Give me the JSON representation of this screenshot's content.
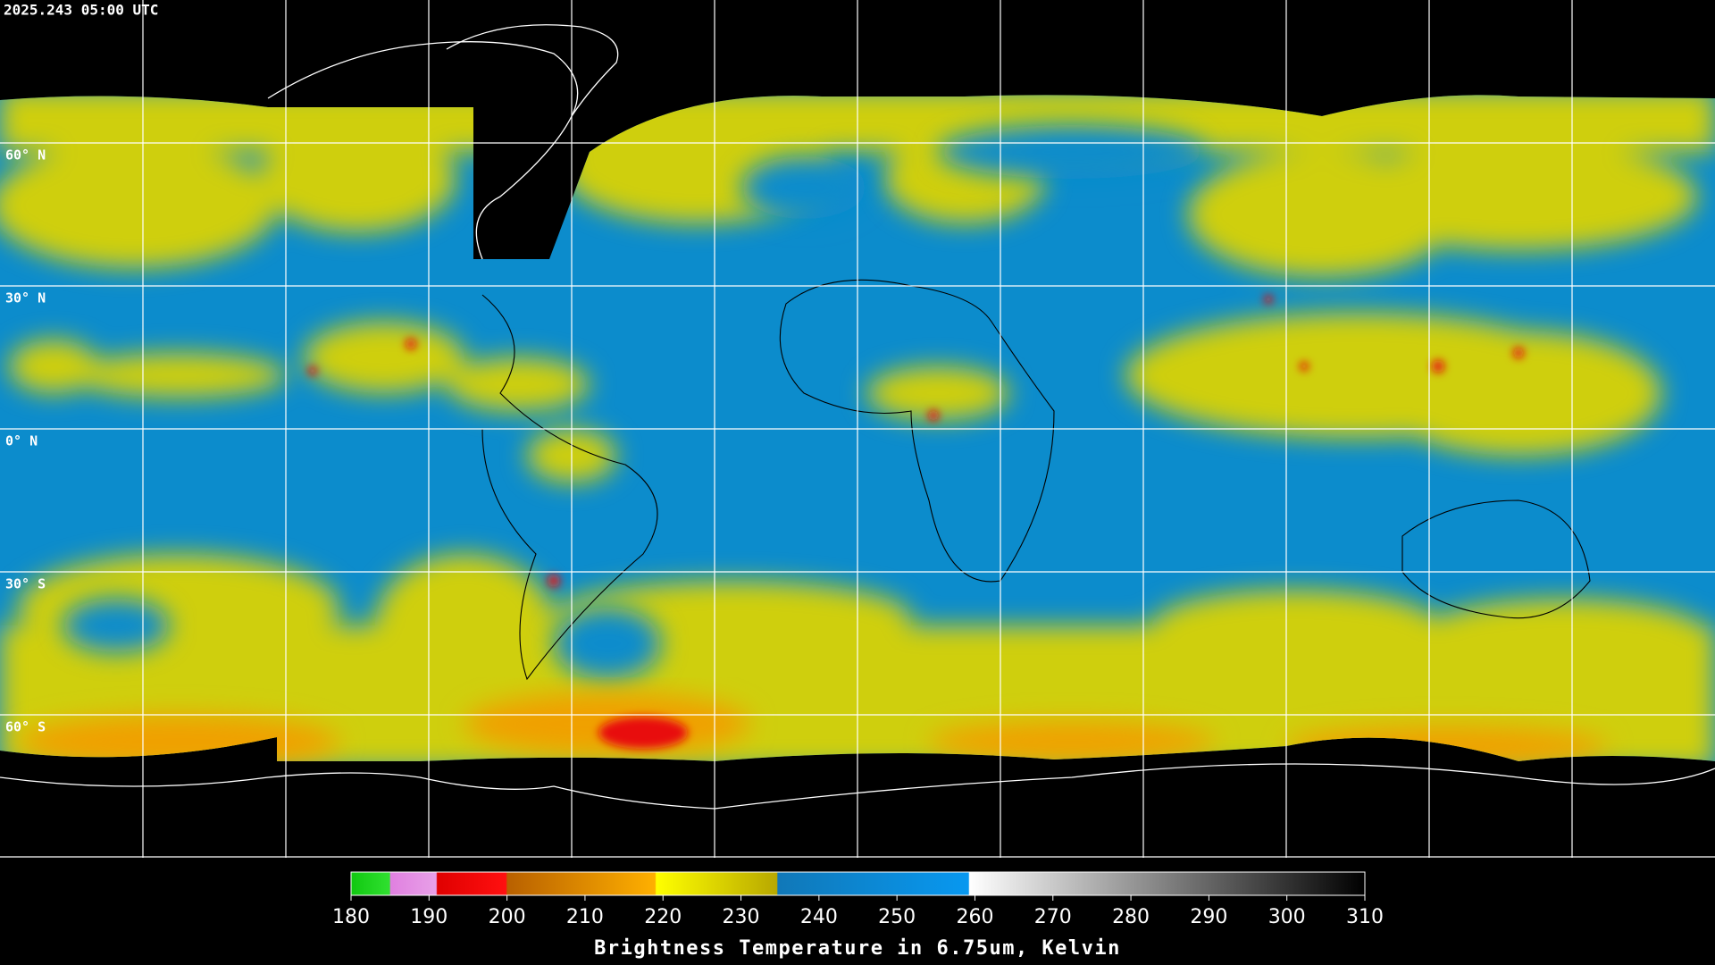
{
  "timestamp": "2025.243 05:00 UTC",
  "latitude_labels": [
    "60° N",
    "30° N",
    "0° N",
    "30° S",
    "60° S"
  ],
  "colorbar": {
    "title": "Brightness Temperature in 6.75um, Kelvin",
    "lim": [
      180,
      310
    ],
    "ticks": [
      180,
      190,
      200,
      210,
      220,
      230,
      240,
      250,
      260,
      270,
      280,
      290,
      300,
      310
    ]
  }
}
